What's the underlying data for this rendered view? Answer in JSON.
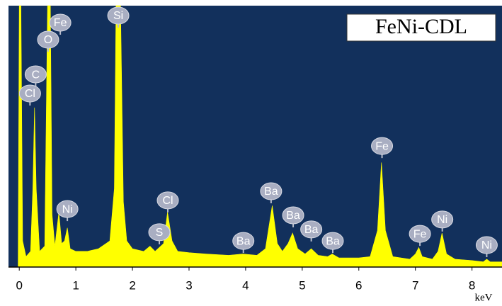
{
  "chart_data": {
    "type": "area",
    "title": "FeNi-CDL",
    "x_label": "keV",
    "color": "#ffff00",
    "background": "#12305c",
    "xlim": [
      -0.19,
      8.53
    ],
    "ylim": [
      0,
      100
    ],
    "xticks": [
      0,
      1,
      2,
      3,
      4,
      5,
      6,
      7,
      8
    ],
    "x": [
      -0.19,
      -0.02,
      0,
      0.03,
      0.06,
      0.12,
      0.2,
      0.24,
      0.27,
      0.3,
      0.36,
      0.45,
      0.5,
      0.55,
      0.58,
      0.63,
      0.7,
      0.75,
      0.8,
      0.85,
      0.9,
      1.0,
      1.2,
      1.4,
      1.6,
      1.68,
      1.71,
      1.79,
      1.84,
      1.9,
      2.0,
      2.2,
      2.31,
      2.4,
      2.55,
      2.62,
      2.7,
      2.8,
      3.0,
      3.3,
      3.7,
      3.95,
      4.2,
      4.35,
      4.47,
      4.56,
      4.65,
      4.75,
      4.83,
      4.92,
      5.05,
      5.16,
      5.28,
      5.45,
      5.53,
      5.65,
      6.0,
      6.2,
      6.33,
      6.4,
      6.47,
      6.6,
      6.9,
      7.0,
      7.06,
      7.12,
      7.3,
      7.4,
      7.47,
      7.55,
      7.7,
      8.0,
      8.2,
      8.26,
      8.32,
      8.53
    ],
    "values": [
      0,
      0,
      100,
      100,
      10,
      4,
      6,
      30,
      61,
      30,
      6,
      8,
      100,
      100,
      20,
      8,
      21,
      9,
      10,
      15,
      7,
      6,
      6,
      7,
      10,
      30,
      100,
      100,
      25,
      10,
      7,
      6,
      8,
      6,
      9,
      21,
      10,
      6,
      5.5,
      5,
      4.5,
      5,
      4.5,
      7,
      23.5,
      9,
      6,
      9,
      13,
      7,
      5,
      7,
      4.5,
      4,
      5,
      3.5,
      3.5,
      4,
      14,
      40,
      14,
      4,
      3,
      5,
      7.5,
      4,
      3,
      6,
      13,
      5,
      3,
      2.5,
      2,
      3,
      2,
      2
    ],
    "annotations": [
      {
        "text": "Fe",
        "x": 0.725,
        "y": 93.5
      },
      {
        "text": "O",
        "x": 0.51,
        "y": 87
      },
      {
        "text": "C",
        "x": 0.29,
        "y": 73.7
      },
      {
        "text": "Cl",
        "x": 0.19,
        "y": 66.4
      },
      {
        "text": "Si",
        "x": 1.75,
        "y": 96.2
      },
      {
        "text": "Ni",
        "x": 0.85,
        "y": 22.2
      },
      {
        "text": "S",
        "x": 2.475,
        "y": 13.3
      },
      {
        "text": "Cl",
        "x": 2.625,
        "y": 25.5
      },
      {
        "text": "Ba",
        "x": 3.96,
        "y": 10
      },
      {
        "text": "Ba",
        "x": 4.45,
        "y": 29
      },
      {
        "text": "Ba",
        "x": 4.84,
        "y": 19.8
      },
      {
        "text": "Ba",
        "x": 5.16,
        "y": 14.4
      },
      {
        "text": "Ba",
        "x": 5.54,
        "y": 10
      },
      {
        "text": "Fe",
        "x": 6.41,
        "y": 46.3
      },
      {
        "text": "Fe",
        "x": 7.08,
        "y": 12.7
      },
      {
        "text": "Ni",
        "x": 7.475,
        "y": 18.2
      },
      {
        "text": "Ni",
        "x": 8.26,
        "y": 8.4
      }
    ]
  }
}
